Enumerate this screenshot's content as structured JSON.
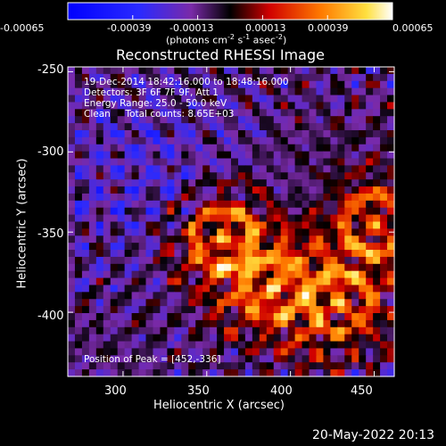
{
  "colorbar": {
    "min_label": "-0.00065",
    "tick_labels": [
      "-0.00065",
      "-0.00039",
      "-0.00013",
      "0.00013",
      "0.00039",
      "0.00065"
    ],
    "unit_label_parts": [
      "(photons cm",
      "-2",
      " s",
      "-1",
      " asec",
      "-2",
      ")"
    ],
    "range": [
      -0.00065,
      0.00065
    ]
  },
  "chart_data": {
    "type": "heatmap",
    "title": "Reconstructed RHESSI Image",
    "xlabel": "Heliocentric X (arcsec)",
    "ylabel": "Heliocentric Y (arcsec)",
    "x_ticks": [
      "300",
      "350",
      "400",
      "450"
    ],
    "y_ticks": [
      "-250",
      "-300",
      "-350",
      "-400"
    ],
    "xlim": [
      267,
      462
    ],
    "ylim": [
      -440,
      -247
    ],
    "annotations": [
      "19-Dec-2014 18:42:16.000 to 18:48:16.000",
      "Detectors: 3F 6F 7F 9F, Att 1",
      "Energy Range: 25.0 - 50.0 keV",
      "Clean     Total counts: 8.65E+03"
    ],
    "peak_label": "Position of Peak = [452,-336]",
    "peak": [
      452,
      -336
    ],
    "bright_sources": [
      {
        "x": 360,
        "y": -355
      },
      {
        "x": 450,
        "y": -345
      },
      {
        "x": 430,
        "y": -395
      },
      {
        "x": 390,
        "y": -385
      }
    ]
  },
  "footer": {
    "date": "20-May-2022 20:13"
  }
}
